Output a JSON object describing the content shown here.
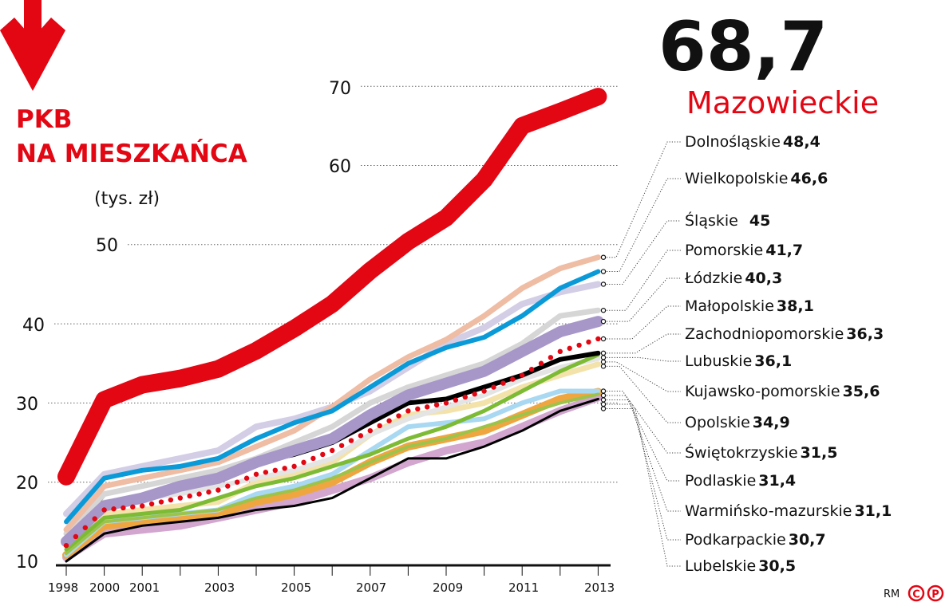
{
  "title": "PKB NA MIESZKAŃCA",
  "title_line1": "PKB",
  "title_line2": "NA MIESZKAŃCA",
  "unit": "(tys. zł)",
  "highlight": {
    "value": "68,7",
    "region": "Mazowieckie"
  },
  "credit": "RM",
  "logo_text": [
    "C",
    "P"
  ],
  "icons": {
    "header": "arrow-down-icon"
  },
  "colors": {
    "accent": "#e30613"
  },
  "chart_data": {
    "type": "line",
    "title": "PKB NA MIESZKAŃCA",
    "ylabel": "(tys. zł)",
    "categories": [
      "1998",
      "2000",
      "2001",
      "2002",
      "2003",
      "2004",
      "2005",
      "2006",
      "2007",
      "2008",
      "2009",
      "2010",
      "2011",
      "2012",
      "2013"
    ],
    "x_tick_labels": [
      "1998",
      "2000",
      "2001",
      "2003",
      "2005",
      "2007",
      "2009",
      "2011",
      "2013"
    ],
    "ylim": [
      10,
      70
    ],
    "y_ticks": [
      "10",
      "20",
      "30",
      "40",
      "50",
      "60",
      "70"
    ],
    "grid": true,
    "series": [
      {
        "name": "Mazowieckie",
        "label": "68,7",
        "color": "#e30613",
        "values": [
          20.7,
          30.4,
          32.3,
          33.1,
          34.3,
          36.6,
          39.4,
          42.5,
          46.7,
          50.4,
          53.4,
          58.2,
          65,
          66.8,
          68.7
        ]
      },
      {
        "name": "Dolnośląskie",
        "label": "48,4",
        "color": "#efbca4",
        "values": [
          14,
          19.5,
          20.5,
          21.5,
          22.5,
          24.5,
          26.5,
          29.5,
          33,
          35.8,
          38,
          41,
          44.5,
          47,
          48.4
        ]
      },
      {
        "name": "Wielkopolskie",
        "label": "46,6",
        "color": "#0b9ad8",
        "values": [
          15,
          20.5,
          21.5,
          22,
          23,
          25.5,
          27.5,
          29,
          32,
          35,
          37,
          38.3,
          41,
          44.5,
          46.6
        ]
      },
      {
        "name": "Śląskie",
        "label": "45",
        "color": "#d3cde6",
        "values": [
          16,
          21,
          22,
          23,
          24,
          27,
          28,
          29.5,
          31.5,
          34.5,
          37.5,
          39.5,
          42.5,
          44,
          45
        ]
      },
      {
        "name": "Pomorskie",
        "label": "41,7",
        "color": "#d6d6d6",
        "values": [
          13.5,
          18.5,
          19.5,
          20.5,
          21.5,
          23,
          25,
          27,
          30,
          32,
          33.5,
          35,
          37.5,
          41,
          41.7
        ]
      },
      {
        "name": "Łódzkie",
        "label": "40,3",
        "color": "#a697c8",
        "values": [
          12.5,
          17,
          18,
          19.5,
          20.5,
          22.5,
          24,
          25.5,
          28.5,
          31,
          32.5,
          34,
          36.5,
          39,
          40.3
        ]
      },
      {
        "name": "Małopolskie",
        "label": "38,1",
        "color": "#e30613",
        "dotted": true,
        "values": [
          12,
          16.5,
          17,
          18,
          19,
          21,
          22,
          24,
          26.5,
          29,
          30,
          31.5,
          33.5,
          36.5,
          38.1
        ]
      },
      {
        "name": "Zachodniopomorskie",
        "label": "36,3",
        "color": "#000000",
        "values": [
          12.5,
          18.5,
          19.5,
          20.5,
          21,
          22.5,
          23.5,
          25,
          27.5,
          30,
          30.5,
          32,
          33.5,
          35.5,
          36.3
        ]
      },
      {
        "name": "Lubuskie",
        "label": "36,1",
        "color": "#7dbb35",
        "values": [
          11.5,
          15.5,
          16,
          16.5,
          18,
          19.5,
          20.5,
          22,
          23.5,
          25.5,
          27,
          29,
          31.5,
          34,
          36.1
        ]
      },
      {
        "name": "Kujawsko-pomorskie",
        "label": "35,6",
        "color": "#e4e4e4",
        "values": [
          13,
          17.5,
          18,
          18.5,
          19.5,
          20.5,
          21.5,
          23,
          26,
          28,
          29.5,
          31,
          33,
          34.5,
          35.6
        ]
      },
      {
        "name": "Opolskie",
        "label": "34,9",
        "color": "#f3e2a9",
        "values": [
          12,
          16,
          16.5,
          17,
          17.5,
          20,
          21,
          22.5,
          26,
          28.5,
          29,
          30,
          32,
          33.5,
          34.9
        ]
      },
      {
        "name": "Świętokrzyskie",
        "label": "31,5",
        "color": "#a8d8f2",
        "values": [
          10.8,
          15,
          15.5,
          16,
          16.5,
          18.5,
          19.5,
          21,
          24,
          27,
          27.5,
          28,
          30,
          31.5,
          31.5
        ]
      },
      {
        "name": "Podlaskie",
        "label": "31,4",
        "color": "#efa640",
        "values": [
          10.8,
          14.5,
          15,
          15.5,
          16,
          17.5,
          18.5,
          20,
          22.5,
          24.5,
          25.5,
          26.5,
          28.5,
          30.5,
          31.4
        ]
      },
      {
        "name": "Warmińsko-mazurskie",
        "label": "31,1",
        "color": "#9cc34a",
        "values": [
          11,
          15,
          15.5,
          16,
          16.5,
          18,
          19,
          20.5,
          22.5,
          24.5,
          25.5,
          27,
          28.5,
          30,
          31.1
        ]
      },
      {
        "name": "Podkarpackie",
        "label": "30,7",
        "color": "#d2a6cf",
        "values": [
          10.5,
          13.5,
          14,
          14.5,
          15.5,
          16.5,
          17.5,
          19,
          20.5,
          22.5,
          24,
          25,
          27,
          29,
          30.7
        ]
      },
      {
        "name": "Lubelskie",
        "label": "30,5",
        "color": "#000000",
        "values": [
          10,
          13.5,
          14.5,
          15,
          15.5,
          16.5,
          17,
          18,
          20.5,
          23,
          23,
          24.5,
          26.5,
          29,
          30.5
        ]
      }
    ]
  }
}
